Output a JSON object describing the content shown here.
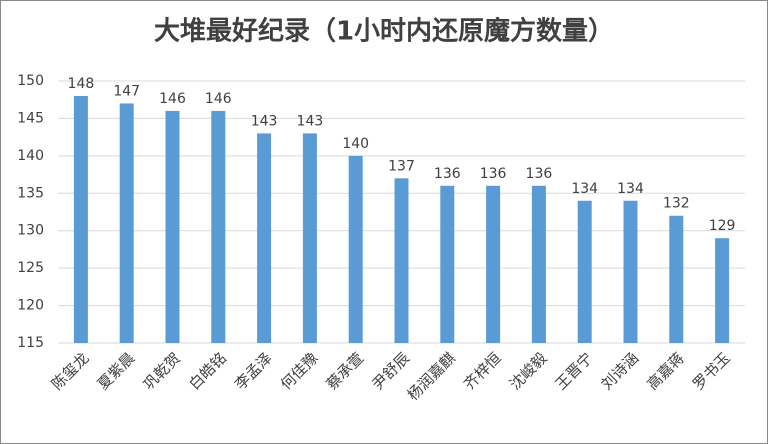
{
  "chart_data": {
    "type": "bar",
    "title": "大堆最好纪录（1小时内还原魔方数量）",
    "categories": [
      "陈玺龙",
      "夏紫晨",
      "巩乾贺",
      "白皓铭",
      "李孟泽",
      "何佳豫",
      "蔡承萱",
      "尹舒辰",
      "杨润嘉麒",
      "齐梓恒",
      "沈峻毅",
      "王晋宁",
      "刘诗涵",
      "高嘉蒋",
      "罗书玉"
    ],
    "values": [
      148,
      147,
      146,
      146,
      143,
      143,
      140,
      137,
      136,
      136,
      136,
      134,
      134,
      132,
      129
    ],
    "color": "#5b9bd5",
    "ylim": [
      115,
      150
    ],
    "yticks": [
      115,
      120,
      125,
      130,
      135,
      140,
      145,
      150
    ],
    "grid": true
  }
}
